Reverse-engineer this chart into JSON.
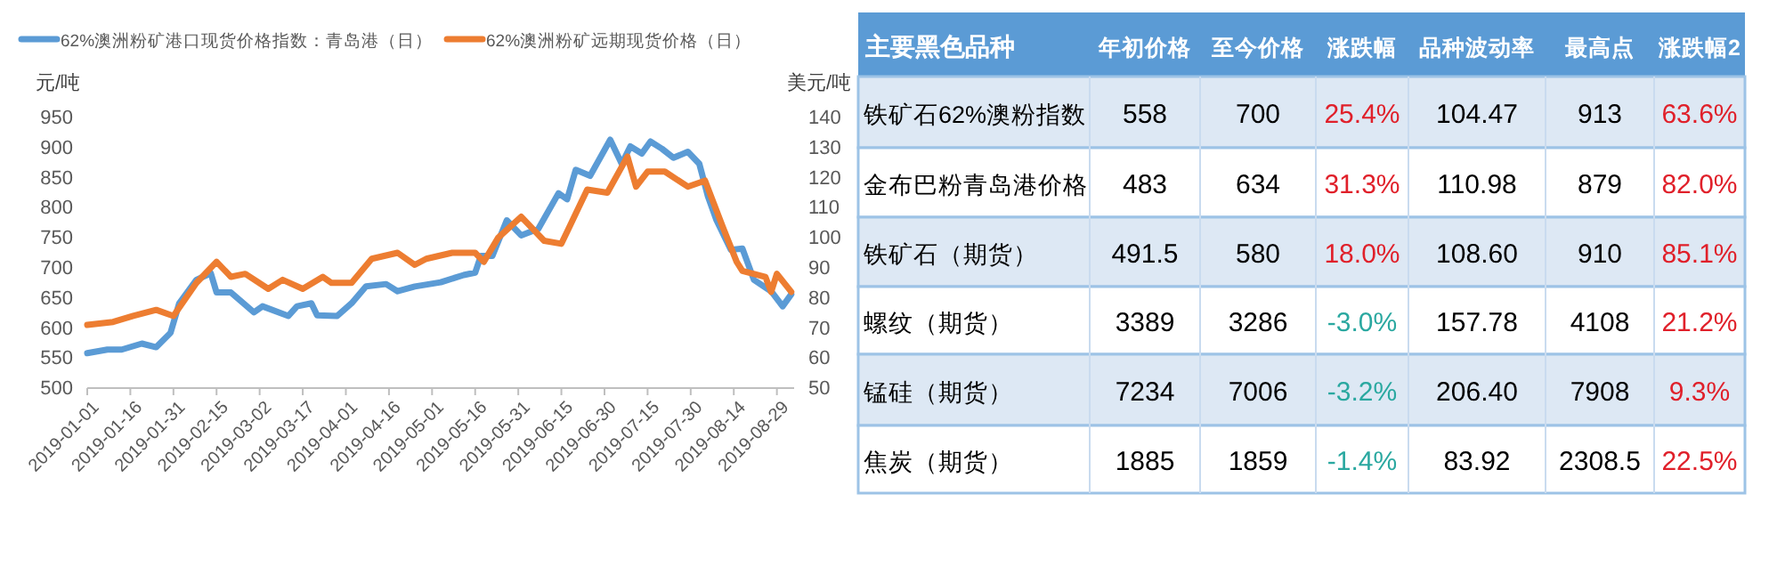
{
  "chart_data": [
    {
      "type": "line",
      "legend": "top",
      "ylabel": "元/吨",
      "y2label": "美元/吨",
      "line_style": "solid",
      "marker": "none",
      "xlim": [
        "2019-01-01",
        "2019-09-04"
      ],
      "xticks": [
        "2019-01-01",
        "2019-01-16",
        "2019-01-31",
        "2019-02-15",
        "2019-03-02",
        "2019-03-17",
        "2019-04-01",
        "2019-04-16",
        "2019-05-01",
        "2019-05-16",
        "2019-05-31",
        "2019-06-15",
        "2019-06-30",
        "2019-07-15",
        "2019-07-30",
        "2019-08-14",
        "2019-08-29"
      ],
      "ylim": [
        500,
        950
      ],
      "yticks": [
        500,
        550,
        600,
        650,
        700,
        750,
        800,
        850,
        900,
        950
      ],
      "y2lim": [
        50,
        140
      ],
      "y2ticks": [
        50,
        60,
        70,
        80,
        90,
        100,
        110,
        120,
        130,
        140
      ],
      "series": [
        {
          "name": "62%澳洲粉矿港口现货价格指数：青岛港（日）",
          "color": "#5b9bd5",
          "x": [
            "2019-01-01",
            "2019-01-08",
            "2019-01-13",
            "2019-01-20",
            "2019-01-25",
            "2019-01-30",
            "2019-02-02",
            "2019-02-08",
            "2019-02-13",
            "2019-02-15",
            "2019-02-20",
            "2019-02-28",
            "2019-03-03",
            "2019-03-12",
            "2019-03-15",
            "2019-03-20",
            "2019-03-22",
            "2019-03-29",
            "2019-04-03",
            "2019-04-08",
            "2019-04-15",
            "2019-04-19",
            "2019-04-25",
            "2019-05-04",
            "2019-05-12",
            "2019-05-16",
            "2019-05-18",
            "2019-05-22",
            "2019-05-27",
            "2019-06-01",
            "2019-06-07",
            "2019-06-14",
            "2019-06-17",
            "2019-06-20",
            "2019-06-25",
            "2019-07-02",
            "2019-07-06",
            "2019-07-09",
            "2019-07-13",
            "2019-07-16",
            "2019-07-20",
            "2019-07-24",
            "2019-07-29",
            "2019-08-02",
            "2019-08-05",
            "2019-08-08",
            "2019-08-13",
            "2019-08-17",
            "2019-08-21",
            "2019-08-27",
            "2019-08-31",
            "2019-09-03"
          ],
          "values": [
            558,
            564,
            564,
            574,
            568,
            592,
            641,
            680,
            691,
            659,
            659,
            626,
            636,
            620,
            636,
            641,
            621,
            620,
            641,
            669,
            673,
            661,
            669,
            676,
            688,
            692,
            720,
            720,
            779,
            754,
            765,
            824,
            814,
            863,
            853,
            913,
            873,
            902,
            890,
            910,
            898,
            883,
            893,
            873,
            819,
            779,
            730,
            732,
            680,
            661,
            636,
            656
          ]
        },
        {
          "name": "62%澳洲粉矿远期现货价格（日）",
          "color": "#ed7d31",
          "axis": "y2",
          "x": [
            "2019-01-01",
            "2019-01-10",
            "2019-01-17",
            "2019-01-25",
            "2019-01-31",
            "2019-02-08",
            "2019-02-15",
            "2019-02-20",
            "2019-02-25",
            "2019-03-05",
            "2019-03-10",
            "2019-03-17",
            "2019-03-24",
            "2019-03-27",
            "2019-04-03",
            "2019-04-10",
            "2019-04-19",
            "2019-04-25",
            "2019-04-29",
            "2019-05-08",
            "2019-05-16",
            "2019-05-19",
            "2019-05-24",
            "2019-06-01",
            "2019-06-09",
            "2019-06-15",
            "2019-06-20",
            "2019-06-24",
            "2019-07-01",
            "2019-07-08",
            "2019-07-11",
            "2019-07-15",
            "2019-07-21",
            "2019-07-29",
            "2019-08-04",
            "2019-08-10",
            "2019-08-15",
            "2019-08-17",
            "2019-08-25",
            "2019-08-27",
            "2019-08-29",
            "2019-09-03"
          ],
          "values": [
            71,
            72,
            74,
            76,
            74,
            85,
            92,
            87,
            88,
            83,
            86,
            83,
            87,
            85,
            85,
            93,
            95,
            91,
            93,
            95,
            95,
            92,
            100,
            107,
            99,
            98,
            108,
            116,
            115,
            127,
            117,
            122,
            122,
            117,
            119,
            104,
            92,
            89,
            87,
            82,
            88,
            82
          ]
        }
      ]
    },
    {
      "type": "other",
      "categories": [
        "主要黑色品种",
        "年初价格",
        "至今价格",
        "涨跌幅",
        "品种波动率",
        "最高点",
        "涨跌幅2"
      ],
      "y_categories": [
        "铁矿石62%澳粉指数",
        "金布巴粉青岛港价格",
        "铁矿石（期货）",
        "螺纹（期货）",
        "锰硅（期货）",
        "焦炭（期货）"
      ],
      "cell_labels": [
        [
          "558",
          "700",
          "25.4%",
          "104.47",
          "913",
          "63.6%"
        ],
        [
          "483",
          "634",
          "31.3%",
          "110.98",
          "879",
          "82.0%"
        ],
        [
          "491.5",
          "580",
          "18.0%",
          "108.60",
          "910",
          "85.1%"
        ],
        [
          "3389",
          "3286",
          "-3.0%",
          "157.78",
          "4108",
          "21.2%"
        ],
        [
          "7234",
          "7006",
          "-3.2%",
          "206.40",
          "7908",
          "9.3%"
        ],
        [
          "1885",
          "1859",
          "-1.4%",
          "83.92",
          "2308.5",
          "22.5%"
        ]
      ],
      "colors": [
        [
          "#000000",
          "#000000",
          "#e0202a",
          "#000000",
          "#000000",
          "#e0202a"
        ],
        [
          "#000000",
          "#000000",
          "#e0202a",
          "#000000",
          "#000000",
          "#e0202a"
        ],
        [
          "#000000",
          "#000000",
          "#e0202a",
          "#000000",
          "#000000",
          "#e0202a"
        ],
        [
          "#000000",
          "#000000",
          "#2aa8a0",
          "#000000",
          "#000000",
          "#e0202a"
        ],
        [
          "#000000",
          "#000000",
          "#2aa8a0",
          "#000000",
          "#000000",
          "#e0202a"
        ],
        [
          "#000000",
          "#000000",
          "#2aa8a0",
          "#000000",
          "#000000",
          "#e0202a"
        ]
      ]
    }
  ]
}
